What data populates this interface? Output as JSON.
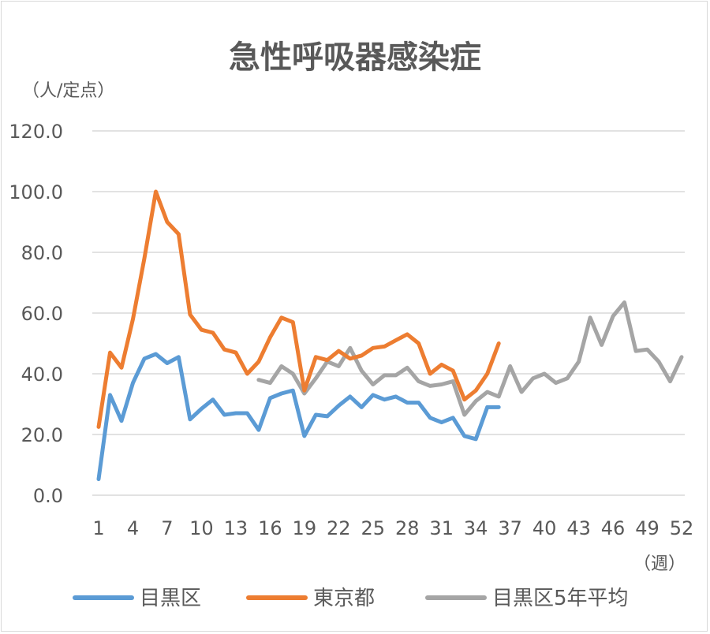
{
  "chart_data": {
    "type": "line",
    "title": "急性呼吸器感染症",
    "ylabel": "（人/定点）",
    "xlabel": "（週）",
    "ylim": [
      0,
      120
    ],
    "yticks": [
      "0.0",
      "20.0",
      "40.0",
      "60.0",
      "80.0",
      "100.0",
      "120.0"
    ],
    "xlim": [
      1,
      52
    ],
    "xticks": [
      "1",
      "4",
      "7",
      "10",
      "13",
      "16",
      "19",
      "22",
      "25",
      "28",
      "31",
      "34",
      "37",
      "40",
      "43",
      "46",
      "49",
      "52"
    ],
    "grid": true,
    "legend_position": "bottom",
    "series": [
      {
        "name": "目黒区",
        "color": "#5b9bd5",
        "x": [
          1,
          2,
          3,
          4,
          5,
          6,
          7,
          8,
          9,
          10,
          11,
          12,
          13,
          14,
          15,
          16,
          17,
          18,
          19,
          20,
          21,
          22,
          23,
          24,
          25,
          26,
          27,
          28,
          29,
          30,
          31,
          32,
          33,
          34,
          35,
          36
        ],
        "values": [
          5.3,
          33.0,
          24.5,
          37.0,
          45.0,
          46.5,
          43.5,
          45.5,
          25.0,
          28.5,
          31.5,
          26.5,
          27.0,
          27.0,
          21.5,
          32.0,
          33.5,
          34.5,
          19.5,
          26.5,
          26.0,
          29.5,
          32.5,
          29.0,
          33.0,
          31.5,
          32.5,
          30.5,
          30.5,
          25.5,
          24.0,
          25.5,
          19.5,
          18.5,
          29.0,
          29.0
        ]
      },
      {
        "name": "東京都",
        "color": "#ed7d31",
        "x": [
          1,
          2,
          3,
          4,
          5,
          6,
          7,
          8,
          9,
          10,
          11,
          12,
          13,
          14,
          15,
          16,
          17,
          18,
          19,
          20,
          21,
          22,
          23,
          24,
          25,
          26,
          27,
          28,
          29,
          30,
          31,
          32,
          33,
          34,
          35,
          36
        ],
        "values": [
          22.5,
          47.0,
          42.0,
          58.0,
          78.0,
          100.0,
          90.0,
          86.0,
          59.5,
          54.5,
          53.5,
          48.0,
          47.0,
          40.0,
          44.0,
          52.0,
          58.5,
          57.0,
          34.5,
          45.5,
          44.5,
          47.5,
          45.0,
          46.0,
          48.5,
          49.0,
          51.0,
          53.0,
          50.0,
          40.0,
          43.0,
          41.0,
          31.5,
          34.5,
          40.0,
          50.0
        ]
      },
      {
        "name": "目黒区5年平均",
        "color": "#a5a5a5",
        "x": [
          15,
          16,
          17,
          18,
          19,
          20,
          21,
          22,
          23,
          24,
          25,
          26,
          27,
          28,
          29,
          30,
          31,
          32,
          33,
          34,
          35,
          36,
          37,
          38,
          39,
          40,
          41,
          42,
          43,
          44,
          45,
          46,
          47,
          48,
          49,
          50,
          51,
          52
        ],
        "values": [
          38.0,
          37.0,
          42.5,
          40.0,
          33.5,
          38.5,
          44.0,
          42.5,
          48.5,
          41.0,
          36.5,
          39.5,
          39.5,
          42.0,
          37.5,
          36.0,
          36.5,
          37.5,
          26.5,
          31.0,
          34.0,
          32.5,
          42.5,
          34.0,
          38.5,
          40.0,
          37.0,
          38.5,
          44.0,
          58.5,
          49.5,
          59.0,
          63.5,
          47.5,
          48.0,
          44.0,
          37.5,
          45.5
        ]
      }
    ]
  }
}
